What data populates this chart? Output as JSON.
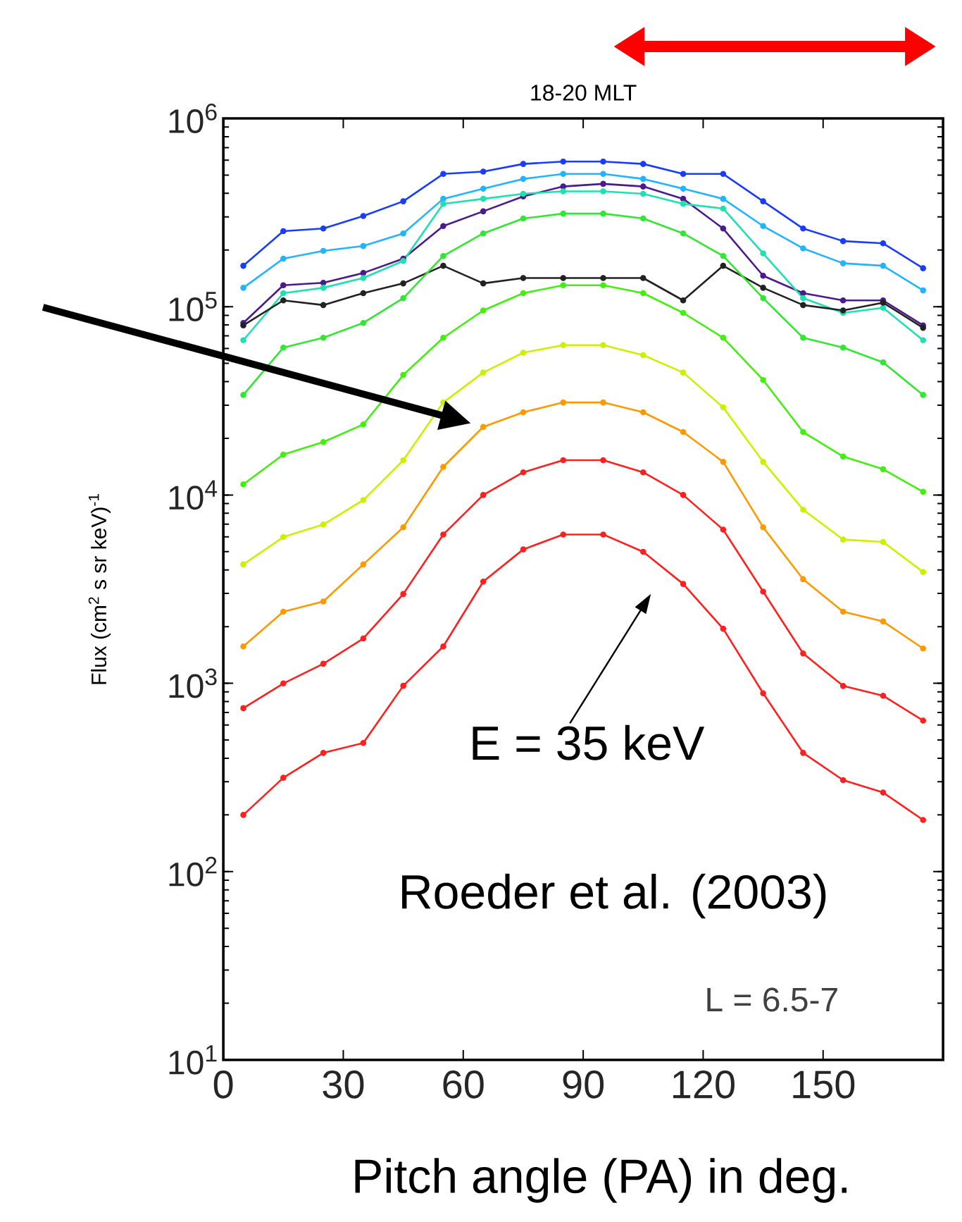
{
  "chart_data": {
    "type": "line",
    "title": "18-20 MLT",
    "xlabel": "Pitch angle (PA) in deg.",
    "ylabel": "Flux (cm$^{2}$ s sr keV)$^{-1}$",
    "x": [
      5,
      15,
      25,
      35,
      45,
      55,
      65,
      75,
      85,
      95,
      105,
      115,
      125,
      135,
      145,
      155,
      165,
      175
    ],
    "series": [
      {
        "color": "#1a3cff",
        "values": [
          165000,
          252000,
          260000,
          303000,
          363000,
          507000,
          522000,
          573000,
          590000,
          590000,
          573000,
          507000,
          507000,
          363000,
          260000,
          223000,
          217000,
          160000
        ]
      },
      {
        "color": "#22b4ff",
        "values": [
          126000,
          180000,
          198000,
          210000,
          245000,
          374000,
          423000,
          477000,
          507000,
          507000,
          477000,
          423000,
          374000,
          268000,
          204000,
          170000,
          165000,
          122000
        ]
      },
      {
        "color": "#4b1a8c",
        "values": [
          82000,
          130000,
          134000,
          151000,
          180000,
          268000,
          321000,
          385000,
          435000,
          449000,
          435000,
          374000,
          260000,
          146000,
          118000,
          108000,
          108000,
          79600
        ]
      },
      {
        "color": "#20e0b0",
        "values": [
          66400,
          118000,
          126000,
          142000,
          175000,
          352000,
          374000,
          398000,
          410000,
          410000,
          398000,
          352000,
          332000,
          192000,
          111000,
          92700,
          98600,
          66400
        ]
      },
      {
        "color": "#222222",
        "values": [
          79600,
          108000,
          102000,
          118000,
          133000,
          165000,
          133000,
          142000,
          142000,
          142000,
          142000,
          108000,
          165000,
          126000,
          102000,
          95500,
          105000,
          77300
        ]
      },
      {
        "color": "#33e633",
        "values": [
          34000,
          60600,
          68400,
          82000,
          111000,
          186000,
          245000,
          294000,
          312000,
          312000,
          294000,
          245000,
          186000,
          111000,
          68400,
          60600,
          50600,
          34000
        ]
      },
      {
        "color": "#44ee11",
        "values": [
          11400,
          16400,
          19100,
          23700,
          43400,
          68400,
          95500,
          118000,
          130000,
          130000,
          118000,
          92700,
          68400,
          40800,
          21600,
          16000,
          13700,
          10400
        ]
      },
      {
        "color": "#ccf000",
        "values": [
          4280,
          5980,
          6970,
          9400,
          15300,
          31000,
          44700,
          57000,
          62500,
          62500,
          55300,
          44700,
          29200,
          15000,
          8360,
          5800,
          5630,
          3900
        ]
      },
      {
        "color": "#ff9900",
        "values": [
          1570,
          2400,
          2720,
          4280,
          6740,
          14100,
          23000,
          27500,
          31000,
          31000,
          27500,
          21600,
          15000,
          6740,
          3570,
          2400,
          2130,
          1530
        ]
      },
      {
        "color": "#ff2020",
        "values": [
          738,
          998,
          1270,
          1730,
          2980,
          6170,
          10000,
          13200,
          15300,
          15300,
          13200,
          10000,
          6550,
          3070,
          1440,
          968,
          859,
          634
        ]
      },
      {
        "color": "#ff2020",
        "values": [
          200,
          315,
          427,
          482,
          970,
          1570,
          3470,
          5140,
          6170,
          6170,
          4990,
          3370,
          1950,
          885,
          427,
          306,
          263,
          188
        ]
      }
    ],
    "log": "y",
    "marker": "circle",
    "line_style": "solid",
    "grid": false,
    "xlim": [
      0,
      180
    ],
    "xticks": [
      0,
      30,
      60,
      90,
      120,
      150
    ],
    "ylim": [
      10,
      1000000
    ],
    "yticks": [
      {
        "value": 10,
        "label": "10$^{1}$"
      },
      {
        "value": 100,
        "label": "10$^{2}$"
      },
      {
        "value": 1000,
        "label": "10$^{3}$"
      },
      {
        "value": 10000,
        "label": "10$^{4}$"
      },
      {
        "value": 100000,
        "label": "10$^{5}$"
      },
      {
        "value": 1000000,
        "label": "10$^{6}$"
      }
    ],
    "annotations": [
      "E = 35 keV",
      "Roeder et al. (2003)",
      "L = 6.5-7"
    ]
  }
}
